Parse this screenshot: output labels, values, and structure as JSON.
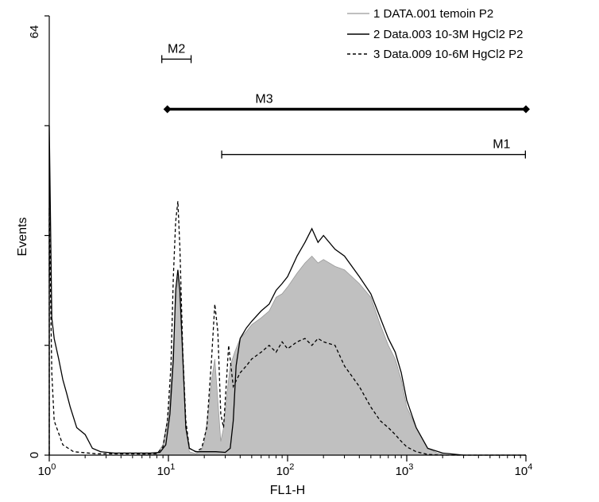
{
  "chart_data": {
    "type": "area",
    "xlabel": "FL1-H",
    "ylabel": "Events",
    "x_scale": "log",
    "xlim": [
      1,
      10000
    ],
    "ylim": [
      0,
      64
    ],
    "x_ticks": [
      {
        "base": "10",
        "exp": "0"
      },
      {
        "base": "10",
        "exp": "1"
      },
      {
        "base": "10",
        "exp": "2"
      },
      {
        "base": "10",
        "exp": "3"
      },
      {
        "base": "10",
        "exp": "4"
      }
    ],
    "y_ticks": [
      "0",
      "64"
    ],
    "legend": {
      "position": "top-right",
      "entries": [
        {
          "label": "1 DATA.001 temoin P2",
          "style": "solid",
          "color": "#aaaaaa"
        },
        {
          "label": "2 Data.003 10-3M HgCl2 P2",
          "style": "solid",
          "color": "#000000"
        },
        {
          "label": "3 Data.009 10-6M HgCl2 P2",
          "style": "dashed",
          "color": "#000000"
        }
      ]
    },
    "markers": [
      {
        "label": "M2",
        "start": 8.8,
        "end": 15.5,
        "y": 57.7
      },
      {
        "label": "M3",
        "start": 9.8,
        "end": 10000,
        "y": 50.4,
        "bold": true
      },
      {
        "label": "M1",
        "start": 28,
        "end": 9900,
        "y": 43.8
      }
    ],
    "series": [
      {
        "name": "1 DATA.001 temoin P2",
        "style": "filled",
        "fill": "#c0c0c0",
        "stroke": "#999999",
        "points": [
          [
            1,
            0
          ],
          [
            2,
            0
          ],
          [
            5,
            0
          ],
          [
            8,
            0.2
          ],
          [
            9,
            1.5
          ],
          [
            10,
            6
          ],
          [
            10.7,
            12
          ],
          [
            11.5,
            22
          ],
          [
            12,
            26
          ],
          [
            12.5,
            22
          ],
          [
            13.3,
            12
          ],
          [
            14,
            4
          ],
          [
            15,
            0.5
          ],
          [
            17,
            0.2
          ],
          [
            19,
            0.8
          ],
          [
            20,
            2
          ],
          [
            21.5,
            6
          ],
          [
            23,
            11
          ],
          [
            24.5,
            14
          ],
          [
            26,
            8
          ],
          [
            27.5,
            2
          ],
          [
            29,
            4
          ],
          [
            31,
            9
          ],
          [
            33,
            13
          ],
          [
            36,
            15
          ],
          [
            40,
            17
          ],
          [
            45,
            18
          ],
          [
            50,
            19
          ],
          [
            60,
            20
          ],
          [
            70,
            21
          ],
          [
            80,
            23
          ],
          [
            90,
            23.5
          ],
          [
            100,
            24.5
          ],
          [
            120,
            26.5
          ],
          [
            140,
            28
          ],
          [
            160,
            29
          ],
          [
            180,
            28
          ],
          [
            200,
            28.5
          ],
          [
            250,
            27.5
          ],
          [
            300,
            27
          ],
          [
            400,
            25
          ],
          [
            500,
            23
          ],
          [
            600,
            19
          ],
          [
            700,
            16
          ],
          [
            800,
            14
          ],
          [
            900,
            11
          ],
          [
            1000,
            7
          ],
          [
            1200,
            4
          ],
          [
            1500,
            1
          ],
          [
            1800,
            0.3
          ],
          [
            2200,
            0
          ],
          [
            10000,
            0
          ]
        ]
      },
      {
        "name": "2 Data.003 10-3M HgCl2 P2",
        "style": "solid",
        "stroke": "#000000",
        "points": [
          [
            1,
            0
          ],
          [
            1,
            48
          ],
          [
            1.05,
            20
          ],
          [
            1.1,
            17
          ],
          [
            1.2,
            14
          ],
          [
            1.3,
            11
          ],
          [
            1.4,
            9
          ],
          [
            1.5,
            7
          ],
          [
            1.7,
            4
          ],
          [
            2,
            3
          ],
          [
            2.3,
            1
          ],
          [
            2.7,
            0.5
          ],
          [
            3.5,
            0.3
          ],
          [
            5,
            0.3
          ],
          [
            7,
            0.3
          ],
          [
            8.5,
            0.4
          ],
          [
            9.5,
            1.5
          ],
          [
            10.3,
            6
          ],
          [
            11,
            14
          ],
          [
            11.5,
            24
          ],
          [
            12,
            27
          ],
          [
            12.5,
            24
          ],
          [
            13.3,
            13
          ],
          [
            14,
            4
          ],
          [
            15,
            1
          ],
          [
            17,
            0.5
          ],
          [
            20,
            0.5
          ],
          [
            25,
            0.5
          ],
          [
            30,
            0.4
          ],
          [
            33,
            1
          ],
          [
            35,
            5
          ],
          [
            37,
            13
          ],
          [
            40,
            17
          ],
          [
            45,
            18.5
          ],
          [
            50,
            19.5
          ],
          [
            60,
            21
          ],
          [
            70,
            22
          ],
          [
            80,
            24
          ],
          [
            90,
            25
          ],
          [
            100,
            26
          ],
          [
            120,
            29
          ],
          [
            140,
            31
          ],
          [
            160,
            33
          ],
          [
            180,
            31
          ],
          [
            200,
            32
          ],
          [
            250,
            30
          ],
          [
            300,
            29
          ],
          [
            400,
            26
          ],
          [
            500,
            23.5
          ],
          [
            600,
            20
          ],
          [
            700,
            17
          ],
          [
            800,
            15
          ],
          [
            900,
            12
          ],
          [
            1000,
            8
          ],
          [
            1200,
            4
          ],
          [
            1500,
            1
          ],
          [
            2000,
            0.3
          ],
          [
            3000,
            0
          ],
          [
            10000,
            0
          ]
        ]
      },
      {
        "name": "3 Data.009 10-6M HgCl2 P2",
        "style": "dashed",
        "stroke": "#000000",
        "points": [
          [
            1,
            0
          ],
          [
            1,
            36
          ],
          [
            1.05,
            12
          ],
          [
            1.1,
            5
          ],
          [
            1.3,
            1.5
          ],
          [
            1.6,
            0.5
          ],
          [
            2.5,
            0.2
          ],
          [
            5,
            0.2
          ],
          [
            8,
            0.2
          ],
          [
            9,
            1.2
          ],
          [
            9.8,
            5
          ],
          [
            10.5,
            13
          ],
          [
            11,
            26
          ],
          [
            11.5,
            34
          ],
          [
            12,
            37
          ],
          [
            12.5,
            30
          ],
          [
            13.2,
            15
          ],
          [
            14,
            5
          ],
          [
            15,
            1
          ],
          [
            17,
            0.5
          ],
          [
            19,
            1
          ],
          [
            21,
            4
          ],
          [
            23,
            14
          ],
          [
            24.5,
            22
          ],
          [
            26,
            18
          ],
          [
            27.5,
            6
          ],
          [
            29,
            4
          ],
          [
            31,
            12
          ],
          [
            32,
            16
          ],
          [
            35,
            10
          ],
          [
            40,
            12
          ],
          [
            45,
            13
          ],
          [
            50,
            14
          ],
          [
            60,
            15
          ],
          [
            70,
            16
          ],
          [
            80,
            15
          ],
          [
            90,
            16.5
          ],
          [
            100,
            15.5
          ],
          [
            120,
            16.5
          ],
          [
            140,
            17
          ],
          [
            160,
            16
          ],
          [
            180,
            17
          ],
          [
            200,
            16.5
          ],
          [
            250,
            16
          ],
          [
            300,
            13
          ],
          [
            400,
            10
          ],
          [
            500,
            7
          ],
          [
            600,
            5
          ],
          [
            700,
            4
          ],
          [
            800,
            3
          ],
          [
            900,
            2
          ],
          [
            1000,
            1.2
          ],
          [
            1200,
            0.5
          ],
          [
            1500,
            0.1
          ],
          [
            2000,
            0
          ],
          [
            10000,
            0
          ]
        ]
      }
    ]
  }
}
